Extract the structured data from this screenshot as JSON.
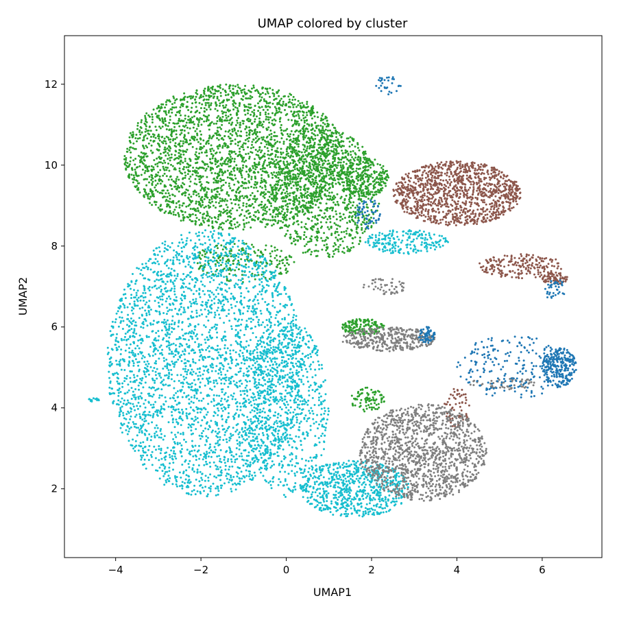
{
  "chart_data": {
    "type": "scatter",
    "title": "UMAP colored by cluster",
    "xlabel": "UMAP1",
    "ylabel": "UMAP2",
    "xlim": [
      -5.2,
      7.4
    ],
    "ylim": [
      0.3,
      13.2
    ],
    "x_ticks": [
      -4,
      -2,
      0,
      2,
      4,
      6
    ],
    "y_ticks": [
      2,
      4,
      6,
      8,
      10,
      12
    ],
    "x_tick_labels": [
      "−4",
      "−2",
      "0",
      "2",
      "4",
      "6"
    ],
    "y_tick_labels": [
      "2",
      "4",
      "6",
      "8",
      "10",
      "12"
    ],
    "grid": false,
    "legend": "none",
    "marker_size": 1.5,
    "series": [
      {
        "color": "#2ca02c",
        "regions": [
          {
            "cx": -1.2,
            "cy": 10.2,
            "rx": 2.6,
            "ry": 1.8,
            "n": 2800
          },
          {
            "cx": 0.9,
            "cy": 9.3,
            "rx": 1.3,
            "ry": 1.6,
            "n": 900
          },
          {
            "cx": 1.8,
            "cy": 9.7,
            "rx": 0.6,
            "ry": 0.5,
            "n": 250
          },
          {
            "cx": 1.8,
            "cy": 6.0,
            "rx": 0.5,
            "ry": 0.2,
            "n": 150
          },
          {
            "cx": 1.9,
            "cy": 4.2,
            "rx": 0.4,
            "ry": 0.3,
            "n": 80
          },
          {
            "cx": -1.0,
            "cy": 7.6,
            "rx": 1.2,
            "ry": 0.5,
            "n": 200
          }
        ]
      },
      {
        "color": "#17becf",
        "regions": [
          {
            "cx": -1.9,
            "cy": 5.1,
            "rx": 2.3,
            "ry": 3.3,
            "n": 3000
          },
          {
            "cx": 0.0,
            "cy": 4.0,
            "rx": 1.0,
            "ry": 2.2,
            "n": 700
          },
          {
            "cx": 1.6,
            "cy": 2.0,
            "rx": 1.3,
            "ry": 0.7,
            "n": 700
          },
          {
            "cx": 2.8,
            "cy": 8.1,
            "rx": 1.0,
            "ry": 0.3,
            "n": 200
          },
          {
            "cx": -4.5,
            "cy": 4.2,
            "rx": 0.15,
            "ry": 0.05,
            "n": 15
          }
        ]
      },
      {
        "color": "#8c564b",
        "regions": [
          {
            "cx": 4.0,
            "cy": 9.3,
            "rx": 1.5,
            "ry": 0.8,
            "n": 1200
          },
          {
            "cx": 5.5,
            "cy": 7.5,
            "rx": 1.0,
            "ry": 0.3,
            "n": 200
          },
          {
            "cx": 6.3,
            "cy": 7.2,
            "rx": 0.3,
            "ry": 0.15,
            "n": 80
          },
          {
            "cx": 4.0,
            "cy": 4.0,
            "rx": 0.3,
            "ry": 0.5,
            "n": 60
          }
        ]
      },
      {
        "color": "#7f7f7f",
        "regions": [
          {
            "cx": 3.2,
            "cy": 2.9,
            "rx": 1.5,
            "ry": 1.2,
            "n": 1300
          },
          {
            "cx": 2.4,
            "cy": 5.7,
            "rx": 1.1,
            "ry": 0.3,
            "n": 350
          },
          {
            "cx": 2.3,
            "cy": 7.0,
            "rx": 0.5,
            "ry": 0.2,
            "n": 50
          },
          {
            "cx": 5.1,
            "cy": 4.6,
            "rx": 0.8,
            "ry": 0.15,
            "n": 60
          }
        ]
      },
      {
        "color": "#1f77b4",
        "regions": [
          {
            "cx": 6.4,
            "cy": 5.0,
            "rx": 0.4,
            "ry": 0.5,
            "n": 250
          },
          {
            "cx": 5.3,
            "cy": 5.0,
            "rx": 1.3,
            "ry": 0.8,
            "n": 200
          },
          {
            "cx": 3.3,
            "cy": 5.8,
            "rx": 0.2,
            "ry": 0.2,
            "n": 60
          },
          {
            "cx": 1.9,
            "cy": 8.8,
            "rx": 0.3,
            "ry": 0.4,
            "n": 60
          },
          {
            "cx": 2.4,
            "cy": 12.0,
            "rx": 0.3,
            "ry": 0.25,
            "n": 30
          },
          {
            "cx": 6.3,
            "cy": 6.9,
            "rx": 0.25,
            "ry": 0.3,
            "n": 40
          }
        ]
      }
    ]
  }
}
